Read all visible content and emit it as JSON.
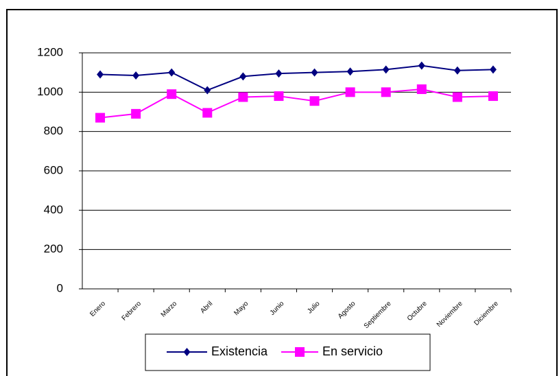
{
  "chart_data": {
    "type": "line",
    "categories": [
      "Enero",
      "Febrero",
      "Marzo",
      "Abril",
      "Mayo",
      "Junio",
      "Julio",
      "Agosto",
      "Septiembre",
      "Octubre",
      "Noviembre",
      "Diciembre"
    ],
    "series": [
      {
        "name": "Existencia",
        "color": "#000080",
        "marker": "diamond",
        "values": [
          1090,
          1085,
          1100,
          1010,
          1080,
          1095,
          1100,
          1105,
          1115,
          1135,
          1110,
          1115
        ]
      },
      {
        "name": "En servicio",
        "color": "#ff00ff",
        "marker": "square",
        "values": [
          870,
          890,
          990,
          895,
          975,
          980,
          955,
          1000,
          1000,
          1015,
          975,
          980
        ]
      }
    ],
    "ylim": [
      0,
      1200
    ],
    "yticks": [
      0,
      200,
      400,
      600,
      800,
      1000,
      1200
    ],
    "grid": true,
    "legend": "bottom"
  }
}
